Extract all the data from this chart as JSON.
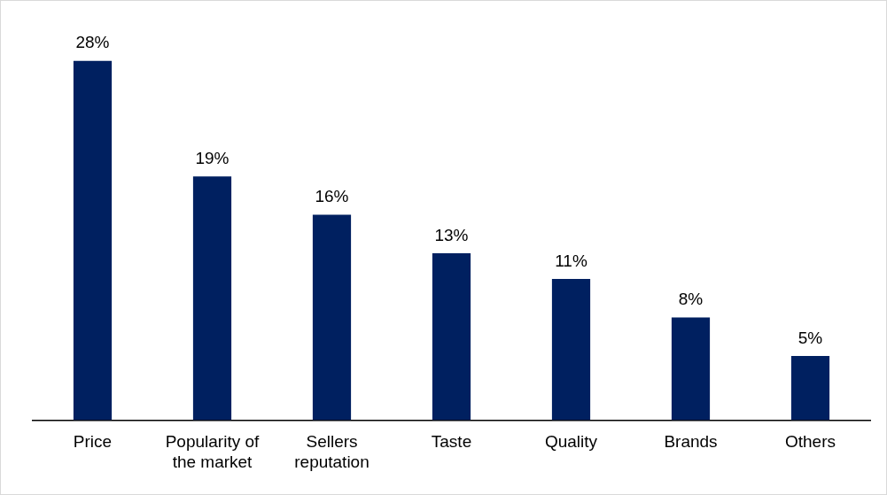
{
  "chart_data": {
    "type": "bar",
    "categories": [
      "Price",
      "Popularity of the market",
      "Sellers reputation",
      "Taste",
      "Quality",
      "Brands",
      "Others"
    ],
    "values": [
      28,
      19,
      16,
      13,
      11,
      8,
      5
    ],
    "value_labels": [
      "28%",
      "19%",
      "16%",
      "13%",
      "11%",
      "8%",
      "5%"
    ],
    "color": "#002060",
    "grid": false,
    "legend": false
  }
}
